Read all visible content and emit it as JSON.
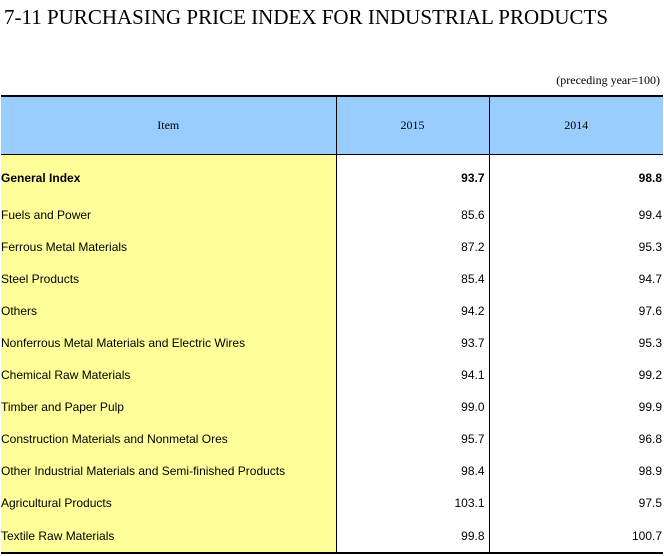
{
  "title": "7-11  PURCHASING PRICE INDEX FOR INDUSTRIAL PRODUCTS",
  "unit_note": "(preceding year=100)",
  "table": {
    "headers": [
      "Item",
      "2015",
      "2014"
    ],
    "rows": [
      {
        "item": "General Index",
        "v2015": "93.7",
        "v2014": "98.8",
        "level": 0,
        "bold": true
      },
      {
        "item": "Fuels and Power",
        "v2015": "85.6",
        "v2014": "99.4",
        "level": 1,
        "bold": false
      },
      {
        "item": "Ferrous Metal Materials",
        "v2015": "87.2",
        "v2014": "95.3",
        "level": 1,
        "bold": false
      },
      {
        "item": "Steel Products",
        "v2015": "85.4",
        "v2014": "94.7",
        "level": 2,
        "bold": false
      },
      {
        "item": "Others",
        "v2015": "94.2",
        "v2014": "97.6",
        "level": 2,
        "bold": false
      },
      {
        "item": "Nonferrous Metal Materials and Electric Wires",
        "v2015": "93.7",
        "v2014": "95.3",
        "level": 1,
        "bold": false
      },
      {
        "item": "Chemical Raw Materials",
        "v2015": "94.1",
        "v2014": "99.2",
        "level": 1,
        "bold": false
      },
      {
        "item": "Timber and Paper Pulp",
        "v2015": "99.0",
        "v2014": "99.9",
        "level": 1,
        "bold": false
      },
      {
        "item": "Construction Materials and Nonmetal Ores",
        "v2015": "95.7",
        "v2014": "96.8",
        "level": 1,
        "bold": false
      },
      {
        "item": "Other Industrial Materials and Semi-finished Products",
        "v2015": "98.4",
        "v2014": "98.9",
        "level": 1,
        "bold": false
      },
      {
        "item": "Agricultural Products",
        "v2015": "103.1",
        "v2014": "97.5",
        "level": 1,
        "bold": false
      },
      {
        "item": "Textile Raw Materials",
        "v2015": "99.8",
        "v2014": "100.7",
        "level": 1,
        "bold": false
      }
    ]
  },
  "colors": {
    "header_bg": "#99ccff",
    "item_bg": "#ffff99",
    "border": "#000000"
  }
}
